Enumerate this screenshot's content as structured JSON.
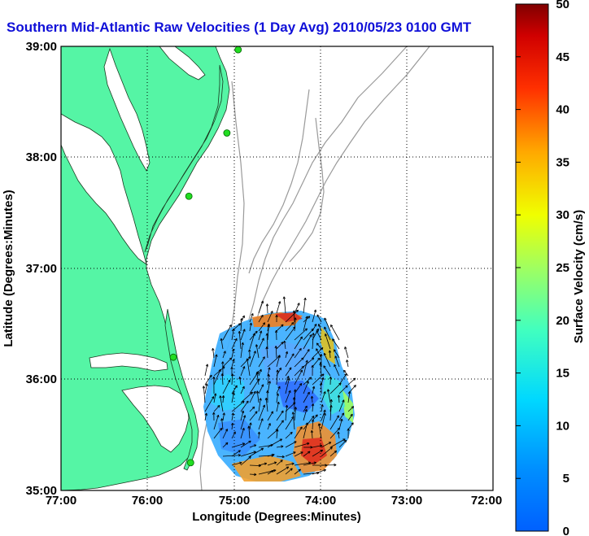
{
  "title": "Southern Mid-Atlantic Raw Velocities (1 Day Avg) 2010/05/23 0100 GMT",
  "xlabel": "Longitude (Degrees:Minutes)",
  "ylabel": "Latitude (Degrees:Minutes)",
  "x_ticks": [
    "77:00",
    "76:00",
    "75:00",
    "74:00",
    "73:00",
    "72:00"
  ],
  "y_ticks": [
    "39:00",
    "38:00",
    "37:00",
    "36:00",
    "35:00"
  ],
  "colorbar": {
    "label": "Surface Velocity (cm/s)",
    "ticks": [
      "0",
      "5",
      "10",
      "15",
      "20",
      "25",
      "30",
      "35",
      "40",
      "45",
      "50"
    ],
    "range": [
      0,
      50
    ]
  },
  "map": {
    "lon_range": [
      -77,
      -72
    ],
    "lat_range": [
      35,
      39
    ],
    "land_color": "#55f5a5",
    "station_color": "#22dd22",
    "stations": [
      {
        "lon": -74.95,
        "lat": 38.97
      },
      {
        "lon": -75.08,
        "lat": 38.22
      },
      {
        "lon": -75.52,
        "lat": 37.65
      },
      {
        "lon": -75.7,
        "lat": 36.2
      },
      {
        "lon": -75.5,
        "lat": 35.25
      }
    ]
  }
}
